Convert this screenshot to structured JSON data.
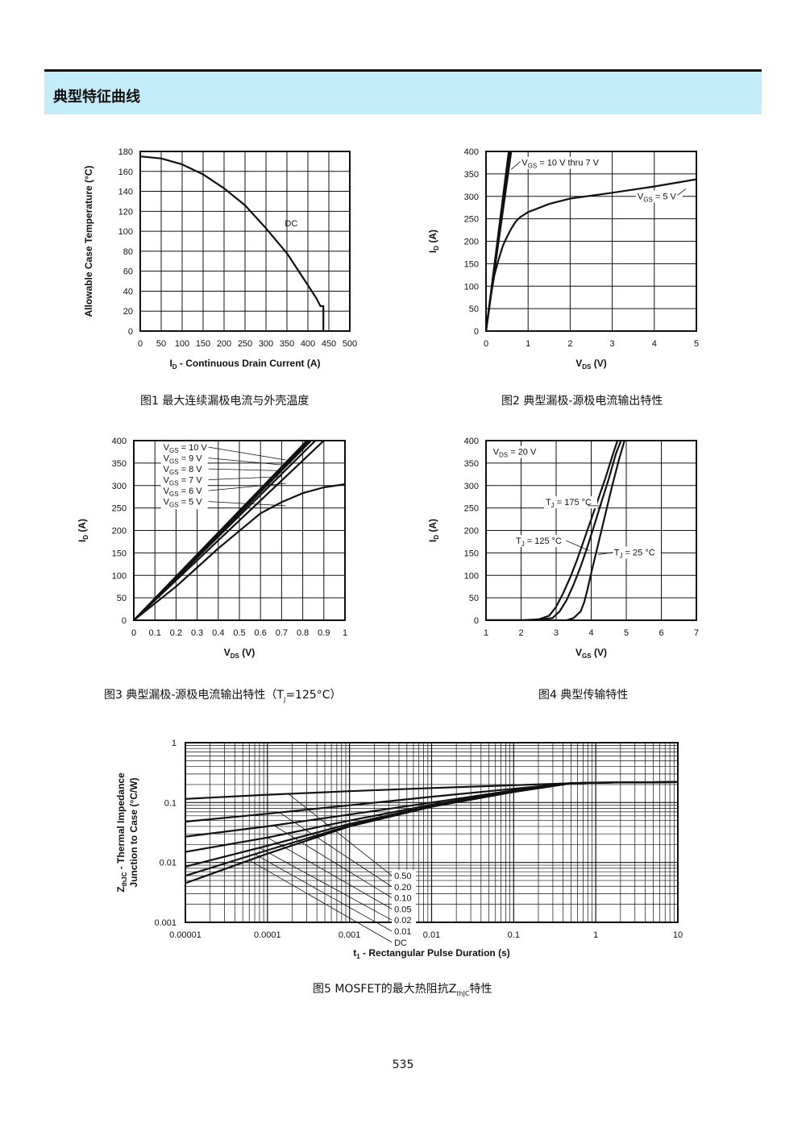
{
  "section_title": "典型特征曲线",
  "page_number": "535",
  "chart_data": [
    {
      "type": "line",
      "caption": "图1 最大连续漏极电流与外壳温度",
      "xlabel": {
        "main": "I",
        "sub": "D",
        "rest": " - Continuous Drain Current (A)"
      },
      "ylabel": "Allowable Case Temperature (°C)",
      "xlim": [
        0,
        500
      ],
      "ylim": [
        0,
        180
      ],
      "xticks": [
        "0",
        "50",
        "100",
        "150",
        "200",
        "250",
        "300",
        "350",
        "400",
        "450",
        "500"
      ],
      "yticks": [
        "0",
        "20",
        "40",
        "60",
        "80",
        "100",
        "120",
        "140",
        "160",
        "180"
      ],
      "grid": true,
      "annotations": [
        {
          "text": "DC",
          "x": 345,
          "y": 108
        }
      ],
      "series": [
        {
          "x": [
            0,
            50,
            100,
            150,
            200,
            250,
            300,
            350,
            400,
            420,
            430,
            437,
            437
          ],
          "y": [
            175,
            173,
            167,
            157,
            143,
            126,
            103,
            78,
            46,
            33,
            25,
            25,
            0
          ]
        }
      ]
    },
    {
      "type": "line",
      "caption": "图2 典型漏极-源极电流输出特性",
      "xlabel": {
        "main": "V",
        "sub": "DS",
        "rest": " (V)"
      },
      "ylabel": {
        "main": "I",
        "sub": "D",
        "rest": " (A)"
      },
      "xlim": [
        0,
        5
      ],
      "ylim": [
        0,
        400
      ],
      "xticks": [
        "0",
        "1",
        "2",
        "3",
        "4",
        "5"
      ],
      "yticks": [
        "0",
        "50",
        "100",
        "150",
        "200",
        "250",
        "300",
        "350",
        "400"
      ],
      "grid": true,
      "annotations": [
        {
          "main": "V",
          "sub": "GS",
          "rest": " = 10 V thru 7 V",
          "x": 0.85,
          "y": 370
        },
        {
          "main": "V",
          "sub": "GS",
          "rest": " = 5 V",
          "x": 3.6,
          "y": 295
        }
      ],
      "series": [
        {
          "x": [
            0,
            0.6
          ],
          "y": [
            0,
            400
          ]
        },
        {
          "x": [
            0,
            0.57
          ],
          "y": [
            0,
            400
          ]
        },
        {
          "x": [
            0,
            0.54
          ],
          "y": [
            0,
            400
          ]
        },
        {
          "x": [
            0,
            0.1,
            0.2,
            0.3,
            0.4,
            0.5,
            0.6,
            0.7,
            0.8,
            1.0,
            1.5,
            2,
            3,
            4,
            5
          ],
          "y": [
            0,
            70,
            125,
            160,
            190,
            210,
            228,
            243,
            253,
            265,
            283,
            295,
            308,
            322,
            338
          ]
        }
      ]
    },
    {
      "type": "line",
      "caption": {
        "pre": "图3 典型漏极-源极电流输出特性（T",
        "sub": "J",
        "post": "=125°C）"
      },
      "xlabel": {
        "main": "V",
        "sub": "DS",
        "rest": " (V)"
      },
      "ylabel": {
        "main": "I",
        "sub": "D",
        "rest": " (A)"
      },
      "xlim": [
        0,
        1
      ],
      "ylim": [
        0,
        400
      ],
      "xticks": [
        "0",
        "0.1",
        "0.2",
        "0.3",
        "0.4",
        "0.5",
        "0.6",
        "0.7",
        "0.8",
        "0.9",
        "1"
      ],
      "yticks": [
        "0",
        "50",
        "100",
        "150",
        "200",
        "250",
        "300",
        "350",
        "400"
      ],
      "grid": true,
      "legend": [
        {
          "main": "V",
          "sub": "GS",
          "rest": " = 10 V"
        },
        {
          "main": "V",
          "sub": "GS",
          "rest": " = 9 V"
        },
        {
          "main": "V",
          "sub": "GS",
          "rest": " = 8 V"
        },
        {
          "main": "V",
          "sub": "GS",
          "rest": " = 7 V"
        },
        {
          "main": "V",
          "sub": "GS",
          "rest": " = 6 V"
        },
        {
          "main": "V",
          "sub": "GS",
          "rest": " = 5 V"
        }
      ],
      "series": [
        {
          "x": [
            0,
            0.82
          ],
          "y": [
            0,
            400
          ]
        },
        {
          "x": [
            0,
            0.83
          ],
          "y": [
            0,
            400
          ]
        },
        {
          "x": [
            0,
            0.84
          ],
          "y": [
            0,
            400
          ]
        },
        {
          "x": [
            0,
            0.86
          ],
          "y": [
            0,
            400
          ]
        },
        {
          "x": [
            0,
            0.9
          ],
          "y": [
            0,
            400
          ]
        },
        {
          "x": [
            0,
            0.2,
            0.4,
            0.6,
            0.7,
            0.8,
            0.9,
            1.0
          ],
          "y": [
            0,
            75,
            160,
            238,
            263,
            283,
            296,
            303
          ]
        }
      ]
    },
    {
      "type": "line",
      "caption": "图4 典型传输特性",
      "xlabel": {
        "main": "V",
        "sub": "GS",
        "rest": " (V)"
      },
      "ylabel": {
        "main": "I",
        "sub": "D",
        "rest": " (A)"
      },
      "xlim": [
        1,
        7
      ],
      "ylim": [
        0,
        400
      ],
      "xticks": [
        "1",
        "2",
        "3",
        "4",
        "5",
        "6",
        "7"
      ],
      "yticks": [
        "0",
        "50",
        "100",
        "150",
        "200",
        "250",
        "300",
        "350",
        "400"
      ],
      "grid": true,
      "annotations": [
        {
          "main": "V",
          "sub": "DS",
          "rest": " = 20 V",
          "x": 1.2,
          "y": 370
        },
        {
          "main": "T",
          "sub": "J",
          "rest": " = 175 °C",
          "x": 2.7,
          "y": 258
        },
        {
          "main": "T",
          "sub": "J",
          "rest": " = 125 °C",
          "x": 1.85,
          "y": 172
        },
        {
          "main": "T",
          "sub": "J",
          "rest": " = 25 °C",
          "x": 4.65,
          "y": 146
        }
      ],
      "series": [
        {
          "name": "175",
          "x": [
            1,
            2,
            2.5,
            2.8,
            3.0,
            3.2,
            3.4,
            3.6,
            3.8,
            4.0,
            4.2,
            4.4,
            4.6,
            4.75
          ],
          "y": [
            0,
            0,
            2,
            10,
            30,
            60,
            95,
            135,
            180,
            225,
            270,
            315,
            365,
            400
          ]
        },
        {
          "name": "125",
          "x": [
            1,
            2.4,
            2.9,
            3.1,
            3.3,
            3.5,
            3.7,
            3.9,
            4.1,
            4.3,
            4.5,
            4.7,
            4.85
          ],
          "y": [
            0,
            0,
            5,
            20,
            45,
            80,
            120,
            165,
            215,
            265,
            315,
            370,
            400
          ]
        },
        {
          "name": "25",
          "x": [
            1,
            3.3,
            3.5,
            3.7,
            3.8,
            3.9,
            4.0,
            4.2,
            4.4,
            4.6,
            4.8,
            4.95
          ],
          "y": [
            0,
            0,
            5,
            20,
            40,
            70,
            105,
            170,
            235,
            300,
            360,
            400
          ]
        }
      ]
    },
    {
      "type": "line",
      "caption": {
        "pre": "图5 MOSFET的最大热阻抗Z",
        "sub": "thJC",
        "post": "特性"
      },
      "xlabel": {
        "main": "t",
        "sub": "1",
        "rest": " - Rectangular Pulse Duration (s)"
      },
      "ylabel": {
        "main": "Z",
        "sub": "thJC",
        "rest": " - Thermal Impedance",
        "line2": "Junction to Case (°C/W)"
      },
      "xscale": "log",
      "yscale": "log",
      "xlim": [
        1e-05,
        10
      ],
      "ylim": [
        0.001,
        1
      ],
      "xticks": [
        "0.00001",
        "0.0001",
        "0.001",
        "0.01",
        "0.1",
        "1",
        "10"
      ],
      "yticks": [
        "0.001",
        "0.01",
        "0.1",
        "1"
      ],
      "grid": true,
      "legend": [
        "0.50",
        "0.20",
        "0.10",
        "0.05",
        "0.02",
        "0.01",
        "DC"
      ],
      "series": [
        {
          "name": "0.50",
          "x": [
            1e-05,
            0.0001,
            0.001,
            0.01,
            0.1,
            0.5,
            1,
            10
          ],
          "y": [
            0.115,
            0.135,
            0.155,
            0.175,
            0.195,
            0.21,
            0.215,
            0.22
          ]
        },
        {
          "name": "0.20",
          "x": [
            1e-05,
            0.0001,
            0.001,
            0.01,
            0.1,
            0.5,
            1,
            10
          ],
          "y": [
            0.048,
            0.065,
            0.09,
            0.125,
            0.17,
            0.21,
            0.215,
            0.22
          ]
        },
        {
          "name": "0.10",
          "x": [
            1e-05,
            0.0001,
            0.001,
            0.01,
            0.1,
            0.5,
            1,
            10
          ],
          "y": [
            0.027,
            0.04,
            0.063,
            0.1,
            0.16,
            0.21,
            0.215,
            0.22
          ]
        },
        {
          "name": "0.05",
          "x": [
            1e-05,
            0.0001,
            0.001,
            0.01,
            0.1,
            0.5,
            1,
            10
          ],
          "y": [
            0.015,
            0.026,
            0.05,
            0.092,
            0.155,
            0.21,
            0.215,
            0.22
          ]
        },
        {
          "name": "0.02",
          "x": [
            1e-05,
            0.0001,
            0.001,
            0.01,
            0.1,
            0.5,
            1,
            10
          ],
          "y": [
            0.0085,
            0.019,
            0.044,
            0.088,
            0.152,
            0.21,
            0.215,
            0.22
          ]
        },
        {
          "name": "0.01",
          "x": [
            1e-05,
            0.0001,
            0.001,
            0.01,
            0.1,
            0.5,
            1,
            10
          ],
          "y": [
            0.006,
            0.016,
            0.041,
            0.086,
            0.15,
            0.21,
            0.215,
            0.22
          ]
        },
        {
          "name": "DC",
          "x": [
            1e-05,
            0.0001,
            0.001,
            0.01,
            0.1,
            0.5,
            1,
            10
          ],
          "y": [
            0.0045,
            0.014,
            0.04,
            0.085,
            0.15,
            0.21,
            0.215,
            0.22
          ]
        }
      ]
    }
  ]
}
